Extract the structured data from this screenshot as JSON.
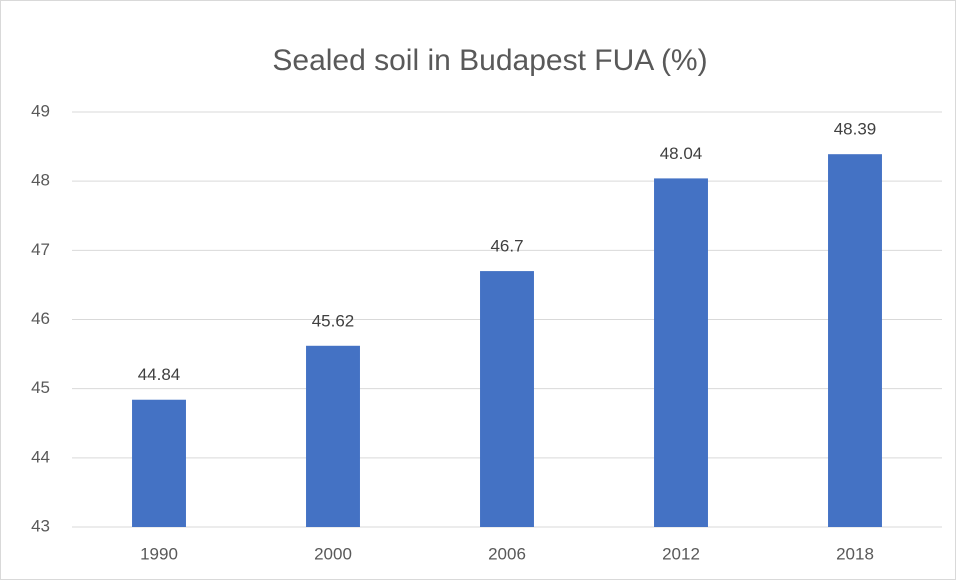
{
  "chart_data": {
    "type": "bar",
    "title": "Sealed soil in Budapest FUA (%)",
    "categories": [
      "1990",
      "2000",
      "2006",
      "2012",
      "2018"
    ],
    "values": [
      44.84,
      45.62,
      46.7,
      48.04,
      48.39
    ],
    "color": "#4472c4",
    "ylim": [
      43,
      49
    ],
    "yticks": [
      43,
      44,
      45,
      46,
      47,
      48,
      49
    ],
    "grid": true
  }
}
